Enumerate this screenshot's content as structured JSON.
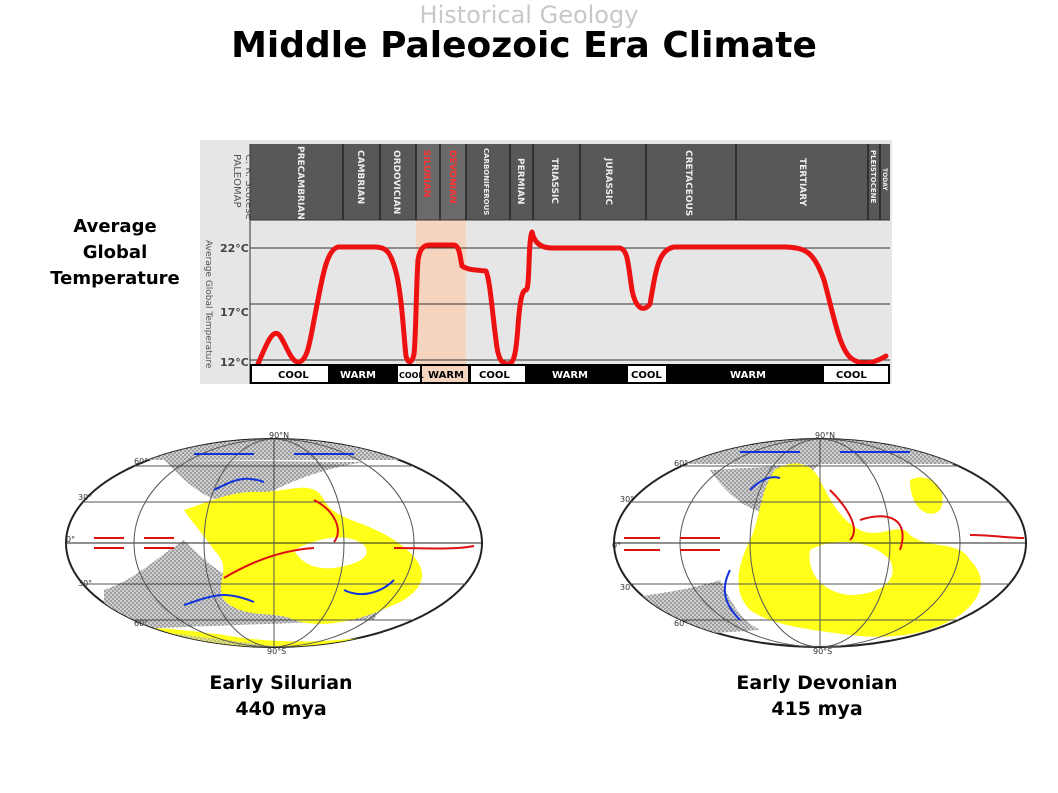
{
  "header": {
    "subtitle": "Historical Geology",
    "title": "Middle Paleozoic Era Climate"
  },
  "chart": {
    "y_label_lines": [
      "Average",
      "Global",
      "Temperature"
    ],
    "credit_lines": [
      "C. R. Scotese",
      "PALEOMAP"
    ],
    "axis_title": "Average Global Temperature",
    "y_ticks": [
      "22°C",
      "17°C",
      "12°C"
    ],
    "periods": [
      "PRECAMBRIAN",
      "CAMBRIAN",
      "ORDOVICIAN",
      "SILURIAN",
      "DEVONIAN",
      "CARBONIFEROUS",
      "PERMIAN",
      "TRIASSIC",
      "JURASSIC",
      "CRETACEOUS",
      "TERTIARY",
      "PLEISTOCENE",
      "TODAY"
    ],
    "highlighted_periods": [
      "SILURIAN",
      "DEVONIAN"
    ],
    "climate_bands": [
      "COOL",
      "WARM",
      "COOL",
      "WARM",
      "COOL",
      "WARM",
      "COOL",
      "WARM",
      "COOL"
    ],
    "colors": {
      "curve": "#ee1111",
      "highlight": "#f5d5bf",
      "header_bg": "#585858",
      "plot_bg": "#e6e6e6"
    }
  },
  "maps": [
    {
      "lat_labels": [
        "90°N",
        "60°",
        "30°",
        "0°",
        "30°",
        "60°",
        "90°S"
      ],
      "caption_name": "Early Silurian",
      "caption_age": "440 mya"
    },
    {
      "lat_labels": [
        "90°N",
        "60°",
        "30°",
        "0°",
        "30°",
        "60°",
        "90°S"
      ],
      "caption_name": "Early Devonian",
      "caption_age": "415 mya"
    }
  ],
  "map_colors": {
    "land": "#ffff1a",
    "ice": "#a8a8a8",
    "warm_current": "#dd1111",
    "cold_current": "#1133dd"
  }
}
